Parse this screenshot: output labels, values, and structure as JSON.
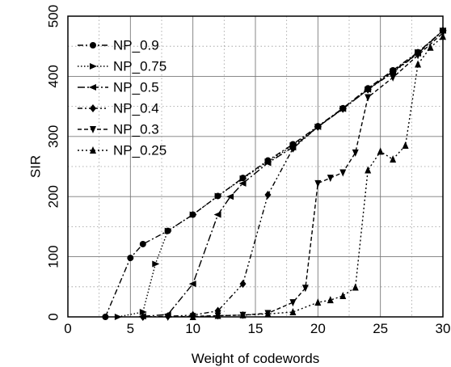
{
  "chart_data": {
    "type": "line",
    "title": "",
    "xlabel": "Weight of codewords",
    "ylabel": "SIR",
    "xlim": [
      0,
      30
    ],
    "ylim": [
      0,
      500
    ],
    "xticks": [
      0,
      5,
      10,
      15,
      20,
      25,
      30
    ],
    "yticks": [
      0,
      100,
      200,
      300,
      400,
      500
    ],
    "grid": true,
    "grid_style": "dotted minor, solid major",
    "legend_position": "top-left",
    "series": [
      {
        "name": "NP_0.9",
        "marker": "circle",
        "dash": "dashdot",
        "x": [
          3,
          5,
          6,
          8,
          10,
          12,
          14,
          16,
          18,
          20,
          22,
          24,
          26,
          28,
          30
        ],
        "y": [
          0,
          98,
          121,
          143,
          170,
          201,
          231,
          260,
          287,
          317,
          347,
          380,
          410,
          440,
          476
        ]
      },
      {
        "name": "NP_0.75",
        "marker": "triangle-right",
        "dash": "dotted",
        "x": [
          4,
          6,
          7,
          8,
          10,
          12,
          14,
          16,
          18,
          20,
          22,
          24,
          26,
          28,
          30
        ],
        "y": [
          0,
          8,
          88,
          143,
          170,
          201,
          230,
          258,
          285,
          316,
          346,
          378,
          408,
          440,
          476
        ]
      },
      {
        "name": "NP_0.5",
        "marker": "triangle-left",
        "dash": "longdashdot",
        "x": [
          6,
          8,
          10,
          12,
          13,
          14,
          16,
          18,
          20,
          22,
          24,
          26,
          28,
          30
        ],
        "y": [
          1,
          4,
          55,
          170,
          200,
          222,
          256,
          282,
          316,
          346,
          378,
          408,
          438,
          476
        ]
      },
      {
        "name": "NP_0.4",
        "marker": "diamond",
        "dash": "dashdotdot",
        "x": [
          6,
          8,
          10,
          12,
          14,
          16,
          18,
          20,
          22,
          24,
          26,
          28,
          30
        ],
        "y": [
          0,
          1,
          3,
          10,
          55,
          203,
          280,
          316,
          346,
          378,
          406,
          438,
          476
        ]
      },
      {
        "name": "NP_0.3",
        "marker": "triangle-down",
        "dash": "dashdash",
        "x": [
          8,
          10,
          12,
          14,
          16,
          18,
          19,
          20,
          21,
          22,
          23,
          24,
          26,
          28,
          30
        ],
        "y": [
          0,
          1,
          2,
          3,
          6,
          24,
          48,
          222,
          231,
          240,
          273,
          365,
          398,
          435,
          472
        ]
      },
      {
        "name": "NP_0.25",
        "marker": "triangle-up",
        "dash": "densedot",
        "x": [
          10,
          12,
          14,
          16,
          18,
          20,
          21,
          22,
          23,
          24,
          25,
          26,
          27,
          28,
          29,
          30
        ],
        "y": [
          0,
          2,
          3,
          5,
          8,
          24,
          28,
          35,
          49,
          244,
          275,
          262,
          285,
          420,
          448,
          466
        ]
      }
    ]
  }
}
